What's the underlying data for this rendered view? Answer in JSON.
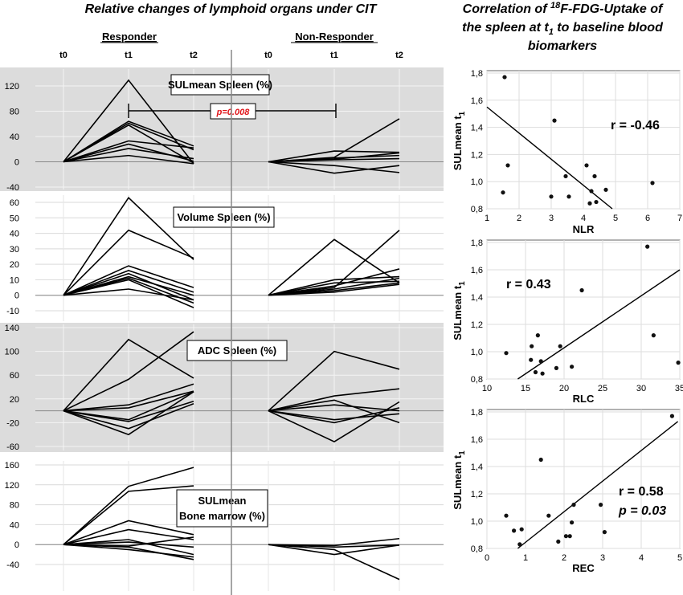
{
  "left_title": "Relative changes of lymphoid organs under CIT",
  "right_title_lines": [
    "Correlation of ",
    "18",
    "F-FDG-Uptake of",
    "the spleen at t",
    "1",
    " to baseline blood",
    "biomarkers"
  ],
  "groups": [
    "Responder",
    "Non-Responder"
  ],
  "time_points": [
    "t0",
    "t1",
    "t2"
  ],
  "p_label": "p=0.008",
  "chart_data": [
    {
      "type": "line",
      "title": "SULmean Spleen (%)",
      "shaded": true,
      "ylim": [
        -40,
        140
      ],
      "yticks": [
        -40,
        0,
        40,
        80,
        120
      ],
      "x": [
        "t0",
        "t1",
        "t2"
      ],
      "responder": [
        [
          0,
          129,
          -3
        ],
        [
          0,
          64,
          25
        ],
        [
          0,
          61,
          19
        ],
        [
          0,
          58,
          -2
        ],
        [
          0,
          33,
          22
        ],
        [
          0,
          28,
          1
        ],
        [
          0,
          21,
          5
        ],
        [
          0,
          10,
          -3
        ]
      ],
      "non_responder": [
        [
          0,
          17,
          15
        ],
        [
          0,
          7,
          68
        ],
        [
          0,
          6,
          10
        ],
        [
          0,
          4,
          14
        ],
        [
          0,
          3,
          5
        ],
        [
          0,
          -18,
          -6
        ],
        [
          0,
          -6,
          -17
        ]
      ]
    },
    {
      "type": "line",
      "title": "Volume Spleen (%)",
      "shaded": false,
      "ylim": [
        -10,
        65
      ],
      "yticks": [
        -10,
        0,
        10,
        20,
        30,
        40,
        50,
        60
      ],
      "x": [
        "t0",
        "t1",
        "t2"
      ],
      "responder": [
        [
          0,
          63,
          23
        ],
        [
          0,
          42,
          24
        ],
        [
          0,
          19,
          5
        ],
        [
          0,
          16,
          2
        ],
        [
          0,
          14,
          -3
        ],
        [
          0,
          12,
          0
        ],
        [
          0,
          11,
          -5
        ],
        [
          0,
          10,
          -8
        ],
        [
          0,
          4,
          -3
        ]
      ],
      "non_responder": [
        [
          0,
          36,
          8
        ],
        [
          0,
          10,
          12
        ],
        [
          0,
          8,
          9
        ],
        [
          0,
          6,
          17
        ],
        [
          0,
          5,
          42
        ],
        [
          0,
          4,
          11
        ],
        [
          0,
          3,
          8
        ],
        [
          0,
          2,
          7
        ]
      ]
    },
    {
      "type": "line",
      "title": "ADC Spleen (%)",
      "shaded": true,
      "ylim": [
        -65,
        145
      ],
      "yticks": [
        -60,
        -20,
        20,
        60,
        100,
        140
      ],
      "x": [
        "t0",
        "t1",
        "t2"
      ],
      "responder": [
        [
          0,
          120,
          55
        ],
        [
          0,
          53,
          133
        ],
        [
          0,
          10,
          45
        ],
        [
          0,
          5,
          33
        ],
        [
          0,
          -15,
          32
        ],
        [
          0,
          -18,
          16
        ],
        [
          0,
          -30,
          12
        ],
        [
          0,
          -40,
          32
        ]
      ],
      "non_responder": [
        [
          0,
          100,
          70
        ],
        [
          0,
          25,
          37
        ],
        [
          0,
          18,
          -20
        ],
        [
          0,
          10,
          0
        ],
        [
          0,
          -15,
          -5
        ],
        [
          0,
          -20,
          5
        ],
        [
          0,
          -52,
          15
        ]
      ]
    },
    {
      "type": "line",
      "title": "SULmean Bone marrow (%)",
      "title_lines": [
        "SULmean",
        "Bone marrow (%)"
      ],
      "shaded": false,
      "ylim": [
        -55,
        165
      ],
      "yticks": [
        -40,
        0,
        40,
        80,
        120,
        160
      ],
      "x": [
        "t0",
        "t1",
        "t2"
      ],
      "responder": [
        [
          0,
          117,
          155
        ],
        [
          0,
          107,
          118
        ],
        [
          0,
          48,
          20
        ],
        [
          0,
          30,
          10
        ],
        [
          0,
          10,
          -20
        ],
        [
          0,
          5,
          -5
        ],
        [
          0,
          -5,
          -30
        ],
        [
          0,
          -3,
          15
        ],
        [
          0,
          -10,
          -25
        ]
      ],
      "non_responder": [
        [
          0,
          -2,
          12
        ],
        [
          0,
          -5,
          -1
        ],
        [
          0,
          -10,
          -70
        ],
        [
          0,
          -20,
          -1
        ]
      ]
    },
    {
      "type": "scatter",
      "xlabel": "NLR",
      "ylabel_main": "SULmean t",
      "ylabel_sub": "1",
      "xlim": [
        1,
        7
      ],
      "ylim": [
        0.8,
        1.8
      ],
      "xticks": [
        1,
        2,
        3,
        4,
        5,
        6,
        7
      ],
      "yticks": [
        0.8,
        1.0,
        1.2,
        1.4,
        1.6,
        1.8
      ],
      "yticklabels": [
        "0,8",
        "1,0",
        "1,2",
        "1,4",
        "1,6",
        "1,8"
      ],
      "points": [
        [
          1.55,
          1.77
        ],
        [
          1.5,
          0.92
        ],
        [
          1.65,
          1.12
        ],
        [
          3.1,
          1.45
        ],
        [
          3.0,
          0.89
        ],
        [
          3.45,
          1.04
        ],
        [
          3.55,
          0.89
        ],
        [
          4.1,
          1.12
        ],
        [
          4.25,
          0.93
        ],
        [
          4.35,
          1.04
        ],
        [
          4.2,
          0.84
        ],
        [
          4.4,
          0.85
        ],
        [
          4.7,
          0.94
        ],
        [
          6.15,
          0.99
        ]
      ],
      "fit": [
        [
          1.0,
          1.55
        ],
        [
          4.9,
          0.8
        ]
      ],
      "r_label": "r = -0.46"
    },
    {
      "type": "scatter",
      "xlabel": "RLC",
      "ylabel_main": "SULmean t",
      "ylabel_sub": "1",
      "xlim": [
        10,
        35
      ],
      "ylim": [
        0.8,
        1.8
      ],
      "xticks": [
        10,
        15,
        20,
        25,
        30,
        35
      ],
      "yticks": [
        0.8,
        1.0,
        1.2,
        1.4,
        1.6,
        1.8
      ],
      "yticklabels": [
        "0,8",
        "1,0",
        "1,2",
        "1,4",
        "1,6",
        "1,8"
      ],
      "points": [
        [
          12.5,
          0.99
        ],
        [
          15.8,
          1.04
        ],
        [
          15.7,
          0.94
        ],
        [
          16.3,
          0.85
        ],
        [
          16.6,
          1.12
        ],
        [
          17.0,
          0.93
        ],
        [
          17.2,
          0.84
        ],
        [
          19.0,
          0.88
        ],
        [
          19.5,
          1.04
        ],
        [
          21.0,
          0.89
        ],
        [
          22.3,
          1.45
        ],
        [
          30.8,
          1.77
        ],
        [
          31.6,
          1.12
        ],
        [
          34.8,
          0.92
        ]
      ],
      "fit": [
        [
          14.0,
          0.8
        ],
        [
          35.0,
          1.6
        ]
      ],
      "r_label": "r = 0.43"
    },
    {
      "type": "scatter",
      "xlabel": "REC",
      "ylabel_main": "SULmean t",
      "ylabel_sub": "1",
      "xlim": [
        0,
        5
      ],
      "ylim": [
        0.8,
        1.8
      ],
      "xticks": [
        0,
        1,
        2,
        3,
        4,
        5
      ],
      "yticks": [
        0.8,
        1.0,
        1.2,
        1.4,
        1.6,
        1.8
      ],
      "yticklabels": [
        "0,8",
        "1,0",
        "1,2",
        "1,4",
        "1,6",
        "1,8"
      ],
      "points": [
        [
          0.5,
          1.04
        ],
        [
          0.7,
          0.93
        ],
        [
          0.85,
          0.83
        ],
        [
          0.9,
          0.94
        ],
        [
          1.4,
          1.45
        ],
        [
          1.6,
          1.04
        ],
        [
          1.85,
          0.85
        ],
        [
          2.05,
          0.89
        ],
        [
          2.15,
          0.89
        ],
        [
          2.2,
          0.99
        ],
        [
          2.25,
          1.12
        ],
        [
          2.95,
          1.12
        ],
        [
          3.05,
          0.92
        ],
        [
          4.8,
          1.77
        ]
      ],
      "fit": [
        [
          0.8,
          0.8
        ],
        [
          4.95,
          1.73
        ]
      ],
      "r_label": "r = 0.58",
      "p_label": "p = 0.03"
    }
  ]
}
